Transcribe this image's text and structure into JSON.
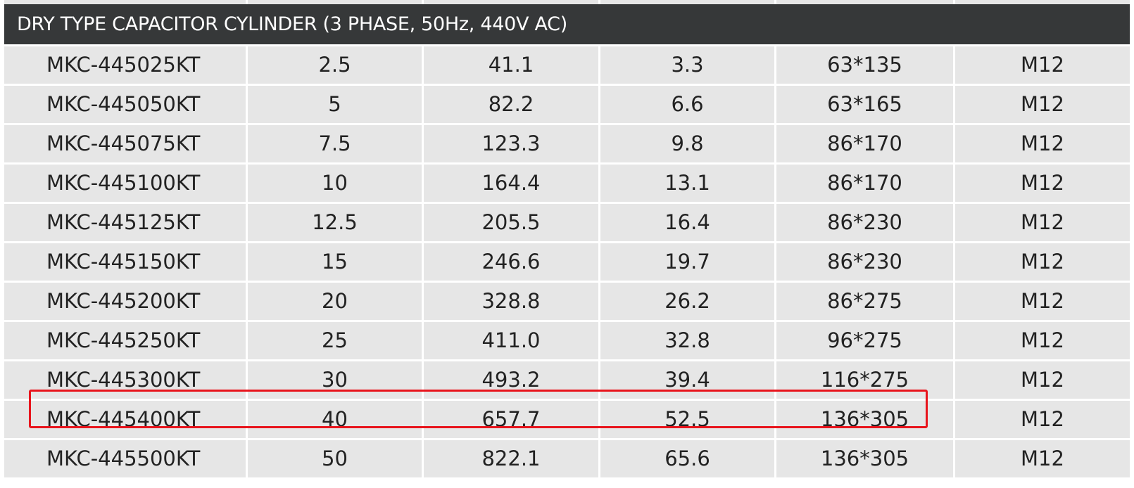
{
  "table": {
    "title": "DRY TYPE CAPACITOR CYLINDER (3 PHASE, 50Hz, 440V AC)",
    "rows": [
      [
        "MKC-445025KT",
        "2.5",
        "41.1",
        "3.3",
        "63*135",
        "M12"
      ],
      [
        "MKC-445050KT",
        "5",
        "82.2",
        "6.6",
        "63*165",
        "M12"
      ],
      [
        "MKC-445075KT",
        "7.5",
        "123.3",
        "9.8",
        "86*170",
        "M12"
      ],
      [
        "MKC-445100KT",
        "10",
        "164.4",
        "13.1",
        "86*170",
        "M12"
      ],
      [
        "MKC-445125KT",
        "12.5",
        "205.5",
        "16.4",
        "86*230",
        "M12"
      ],
      [
        "MKC-445150KT",
        "15",
        "246.6",
        "19.7",
        "86*230",
        "M12"
      ],
      [
        "MKC-445200KT",
        "20",
        "328.8",
        "26.2",
        "86*275",
        "M12"
      ],
      [
        "MKC-445250KT",
        "25",
        "411.0",
        "32.8",
        "96*275",
        "M12"
      ],
      [
        "MKC-445300KT",
        "30",
        "493.2",
        "39.4",
        "116*275",
        "M12"
      ],
      [
        "MKC-445400KT",
        "40",
        "657.7",
        "52.5",
        "136*305",
        "M12"
      ],
      [
        "MKC-445500KT",
        "50",
        "822.1",
        "65.6",
        "136*305",
        "M12"
      ]
    ],
    "highlighted_row": 9,
    "colors": {
      "header_bg": "#363839",
      "cell_bg": "#e6e6e6",
      "highlight": "#e8141c"
    }
  }
}
